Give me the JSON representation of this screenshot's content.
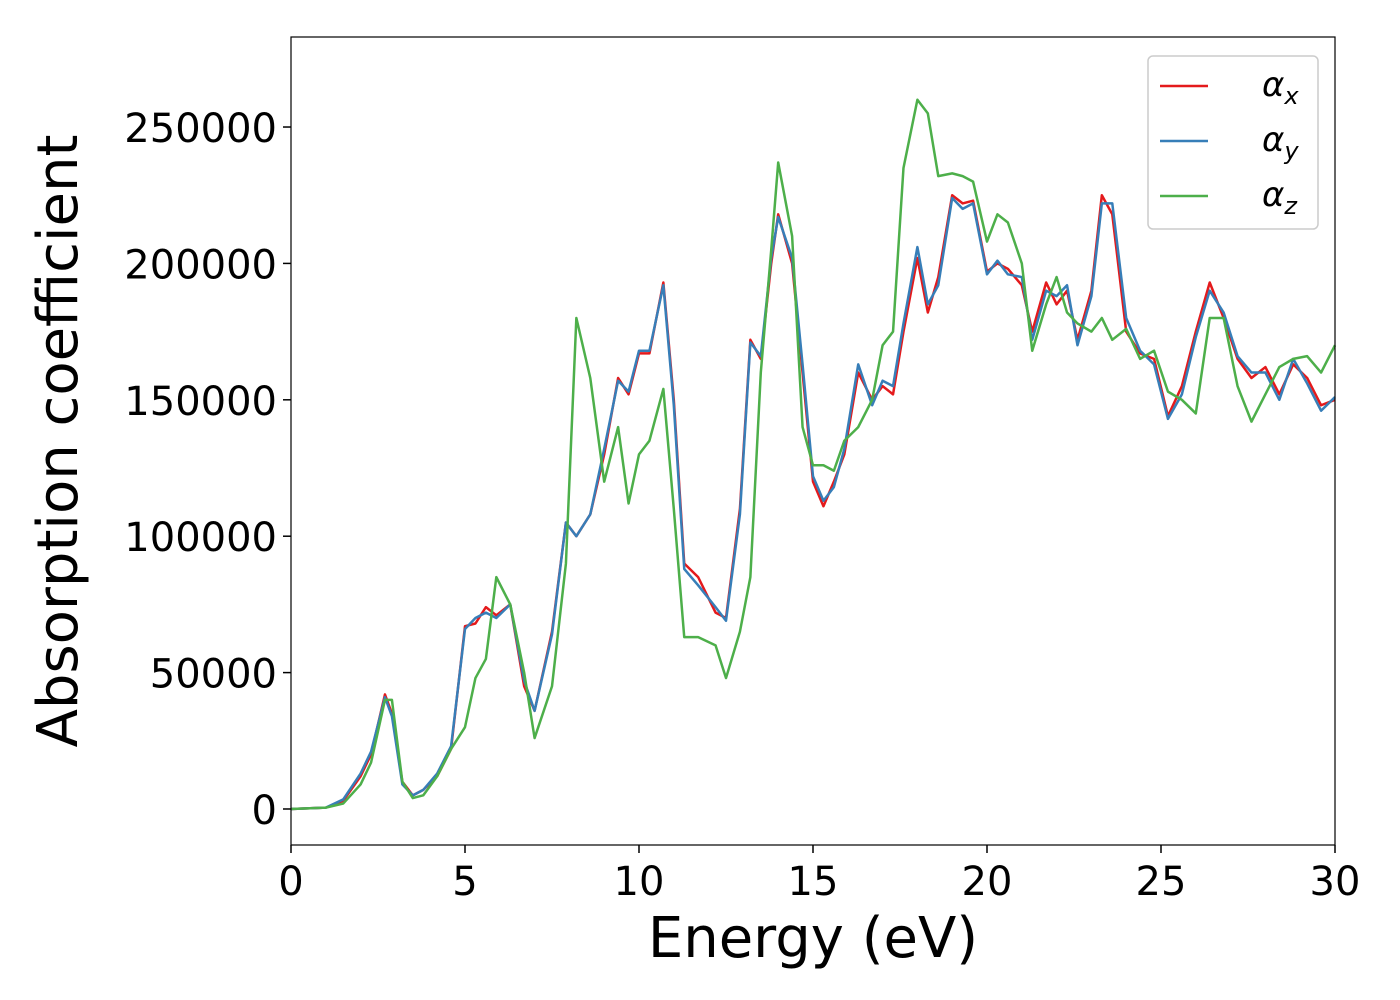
{
  "chart_data": {
    "type": "line",
    "xlabel": "Energy (eV)",
    "ylabel": "Absorption coefficient",
    "xlim": [
      0,
      30
    ],
    "ylim": [
      -13200,
      283000
    ],
    "xticks": [
      0,
      5,
      10,
      15,
      20,
      25,
      30
    ],
    "yticks": [
      0,
      50000,
      100000,
      150000,
      200000,
      250000
    ],
    "legend": "upper right",
    "x": [
      0,
      1,
      1.5,
      2,
      2.3,
      2.7,
      2.9,
      3.2,
      3.5,
      3.8,
      4.2,
      4.6,
      5,
      5.3,
      5.6,
      5.9,
      6.3,
      6.7,
      7,
      7.5,
      7.9,
      8.2,
      8.6,
      9,
      9.4,
      9.7,
      10,
      10.3,
      10.7,
      11,
      11.3,
      11.7,
      12.2,
      12.5,
      12.9,
      13.2,
      13.5,
      13.8,
      14,
      14.4,
      14.7,
      15,
      15.3,
      15.6,
      15.9,
      16.3,
      16.7,
      17,
      17.3,
      17.6,
      18,
      18.3,
      18.6,
      19,
      19.3,
      19.6,
      20,
      20.3,
      20.6,
      21,
      21.3,
      21.7,
      22,
      22.3,
      22.6,
      23,
      23.3,
      23.6,
      24,
      24.4,
      24.8,
      25.2,
      25.6,
      26,
      26.4,
      26.8,
      27.2,
      27.6,
      28,
      28.4,
      28.8,
      29.2,
      29.6,
      30
    ],
    "series": [
      {
        "name": "αx",
        "color": "#e41a1c",
        "values": [
          0,
          500,
          3000,
          12000,
          20000,
          42000,
          35000,
          10000,
          5000,
          7000,
          12000,
          22000,
          67000,
          68000,
          74000,
          71000,
          75000,
          45000,
          36000,
          65000,
          105000,
          100000,
          108000,
          130000,
          158000,
          152000,
          167000,
          167000,
          193000,
          150000,
          90000,
          85000,
          72000,
          70000,
          110000,
          172000,
          165000,
          200000,
          218000,
          200000,
          160000,
          120000,
          111000,
          120000,
          130000,
          160000,
          150000,
          155000,
          152000,
          175000,
          202000,
          182000,
          195000,
          225000,
          222000,
          223000,
          197000,
          200000,
          198000,
          192000,
          175000,
          193000,
          185000,
          190000,
          172000,
          190000,
          225000,
          218000,
          175000,
          167000,
          165000,
          144000,
          155000,
          175000,
          193000,
          180000,
          165000,
          158000,
          162000,
          152000,
          163000,
          158000,
          148000,
          150000
        ]
      },
      {
        "name": "αy",
        "color": "#377eb8",
        "values": [
          0,
          500,
          3500,
          13000,
          21000,
          41000,
          34000,
          9000,
          5000,
          7000,
          13000,
          23000,
          66000,
          70000,
          72000,
          70000,
          75000,
          47000,
          36000,
          64000,
          105000,
          100000,
          108000,
          132000,
          157000,
          153000,
          168000,
          168000,
          192000,
          148000,
          88000,
          82000,
          74000,
          69000,
          108000,
          171000,
          166000,
          202000,
          217000,
          202000,
          163000,
          122000,
          113000,
          118000,
          132000,
          163000,
          148000,
          157000,
          155000,
          178000,
          206000,
          185000,
          192000,
          224000,
          220000,
          222000,
          196000,
          201000,
          196000,
          195000,
          172000,
          190000,
          188000,
          192000,
          170000,
          188000,
          222000,
          222000,
          180000,
          168000,
          163000,
          143000,
          152000,
          173000,
          190000,
          182000,
          166000,
          160000,
          160000,
          150000,
          165000,
          156000,
          146000,
          151000
        ]
      },
      {
        "name": "αz",
        "color": "#4daf4a",
        "values": [
          0,
          500,
          2000,
          9000,
          17000,
          40000,
          40000,
          10000,
          4000,
          5000,
          12000,
          22000,
          30000,
          48000,
          55000,
          85000,
          75000,
          50000,
          26000,
          45000,
          90000,
          180000,
          158000,
          120000,
          140000,
          112000,
          130000,
          135000,
          154000,
          110000,
          63000,
          63000,
          60000,
          48000,
          65000,
          85000,
          160000,
          205000,
          237000,
          210000,
          140000,
          126000,
          126000,
          124000,
          135000,
          140000,
          150000,
          170000,
          175000,
          235000,
          260000,
          255000,
          232000,
          233000,
          232000,
          230000,
          208000,
          218000,
          215000,
          200000,
          168000,
          185000,
          195000,
          182000,
          178000,
          175000,
          180000,
          172000,
          176000,
          165000,
          168000,
          153000,
          150000,
          145000,
          180000,
          180000,
          155000,
          142000,
          152000,
          162000,
          165000,
          166000,
          160000,
          170000
        ]
      }
    ]
  }
}
